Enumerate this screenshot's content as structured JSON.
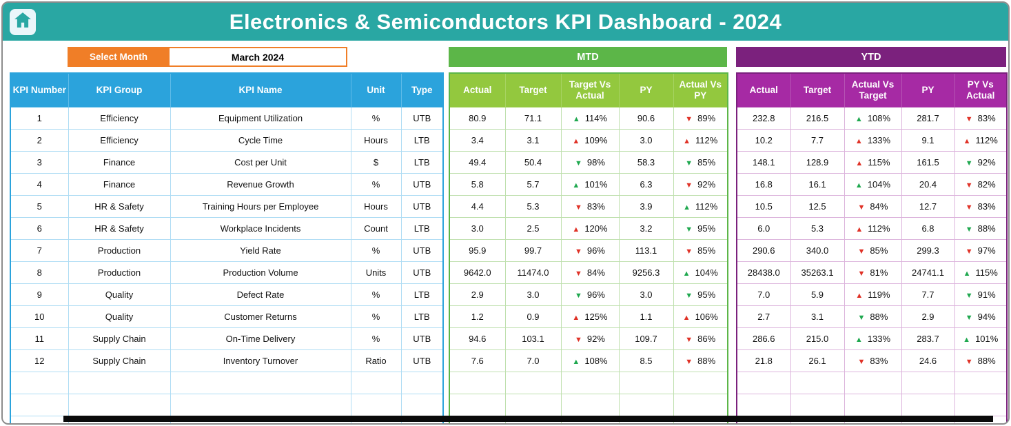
{
  "header": {
    "title": "Electronics & Semiconductors KPI Dashboard - 2024"
  },
  "month_selector": {
    "label": "Select Month",
    "value": "March 2024"
  },
  "kpi_table": {
    "headers": [
      "KPI Number",
      "KPI Group",
      "KPI Name",
      "Unit",
      "Type"
    ]
  },
  "mtd_section": {
    "label": "MTD",
    "headers": [
      "Actual",
      "Target",
      "Target Vs Actual",
      "PY",
      "Actual Vs PY"
    ]
  },
  "ytd_section": {
    "label": "YTD",
    "headers": [
      "Actual",
      "Target",
      "Actual Vs Target",
      "PY",
      "PY Vs Actual"
    ]
  },
  "colors": {
    "titlebar_teal": "#29A7A3",
    "selector_orange": "#F07E27",
    "kpi_header_blue": "#2BA3DC",
    "mtd_band_green": "#5CB648",
    "mtd_header_green": "#93C83E",
    "ytd_band_purple": "#7B217D",
    "ytd_header_magenta": "#A62AA4",
    "arrow_good_green": "#1FA84F",
    "arrow_bad_red": "#E03227"
  },
  "rows": [
    {
      "kpi": [
        "1",
        "Efficiency",
        "Equipment Utilization",
        "%",
        "UTB"
      ],
      "mtd": [
        "80.9",
        "71.1",
        {
          "dir": "up",
          "color": "green",
          "value": "114%"
        },
        "90.6",
        {
          "dir": "down",
          "color": "red",
          "value": "89%"
        }
      ],
      "ytd": [
        "232.8",
        "216.5",
        {
          "dir": "up",
          "color": "green",
          "value": "108%"
        },
        "281.7",
        {
          "dir": "down",
          "color": "red",
          "value": "83%"
        }
      ]
    },
    {
      "kpi": [
        "2",
        "Efficiency",
        "Cycle Time",
        "Hours",
        "LTB"
      ],
      "mtd": [
        "3.4",
        "3.1",
        {
          "dir": "up",
          "color": "red",
          "value": "109%"
        },
        "3.0",
        {
          "dir": "up",
          "color": "red",
          "value": "112%"
        }
      ],
      "ytd": [
        "10.2",
        "7.7",
        {
          "dir": "up",
          "color": "red",
          "value": "133%"
        },
        "9.1",
        {
          "dir": "up",
          "color": "red",
          "value": "112%"
        }
      ]
    },
    {
      "kpi": [
        "3",
        "Finance",
        "Cost per Unit",
        "$",
        "LTB"
      ],
      "mtd": [
        "49.4",
        "50.4",
        {
          "dir": "down",
          "color": "green",
          "value": "98%"
        },
        "58.3",
        {
          "dir": "down",
          "color": "green",
          "value": "85%"
        }
      ],
      "ytd": [
        "148.1",
        "128.9",
        {
          "dir": "up",
          "color": "red",
          "value": "115%"
        },
        "161.5",
        {
          "dir": "down",
          "color": "green",
          "value": "92%"
        }
      ]
    },
    {
      "kpi": [
        "4",
        "Finance",
        "Revenue Growth",
        "%",
        "UTB"
      ],
      "mtd": [
        "5.8",
        "5.7",
        {
          "dir": "up",
          "color": "green",
          "value": "101%"
        },
        "6.3",
        {
          "dir": "down",
          "color": "red",
          "value": "92%"
        }
      ],
      "ytd": [
        "16.8",
        "16.1",
        {
          "dir": "up",
          "color": "green",
          "value": "104%"
        },
        "20.4",
        {
          "dir": "down",
          "color": "red",
          "value": "82%"
        }
      ]
    },
    {
      "kpi": [
        "5",
        "HR & Safety",
        "Training Hours per Employee",
        "Hours",
        "UTB"
      ],
      "mtd": [
        "4.4",
        "5.3",
        {
          "dir": "down",
          "color": "red",
          "value": "83%"
        },
        "3.9",
        {
          "dir": "up",
          "color": "green",
          "value": "112%"
        }
      ],
      "ytd": [
        "10.5",
        "12.5",
        {
          "dir": "down",
          "color": "red",
          "value": "84%"
        },
        "12.7",
        {
          "dir": "down",
          "color": "red",
          "value": "83%"
        }
      ]
    },
    {
      "kpi": [
        "6",
        "HR & Safety",
        "Workplace Incidents",
        "Count",
        "LTB"
      ],
      "mtd": [
        "3.0",
        "2.5",
        {
          "dir": "up",
          "color": "red",
          "value": "120%"
        },
        "3.2",
        {
          "dir": "down",
          "color": "green",
          "value": "95%"
        }
      ],
      "ytd": [
        "6.0",
        "5.3",
        {
          "dir": "up",
          "color": "red",
          "value": "112%"
        },
        "6.8",
        {
          "dir": "down",
          "color": "green",
          "value": "88%"
        }
      ]
    },
    {
      "kpi": [
        "7",
        "Production",
        "Yield Rate",
        "%",
        "UTB"
      ],
      "mtd": [
        "95.9",
        "99.7",
        {
          "dir": "down",
          "color": "red",
          "value": "96%"
        },
        "113.1",
        {
          "dir": "down",
          "color": "red",
          "value": "85%"
        }
      ],
      "ytd": [
        "290.6",
        "340.0",
        {
          "dir": "down",
          "color": "red",
          "value": "85%"
        },
        "299.3",
        {
          "dir": "down",
          "color": "red",
          "value": "97%"
        }
      ]
    },
    {
      "kpi": [
        "8",
        "Production",
        "Production Volume",
        "Units",
        "UTB"
      ],
      "mtd": [
        "9642.0",
        "11474.0",
        {
          "dir": "down",
          "color": "red",
          "value": "84%"
        },
        "9256.3",
        {
          "dir": "up",
          "color": "green",
          "value": "104%"
        }
      ],
      "ytd": [
        "28438.0",
        "35263.1",
        {
          "dir": "down",
          "color": "red",
          "value": "81%"
        },
        "24741.1",
        {
          "dir": "up",
          "color": "green",
          "value": "115%"
        }
      ]
    },
    {
      "kpi": [
        "9",
        "Quality",
        "Defect Rate",
        "%",
        "LTB"
      ],
      "mtd": [
        "2.9",
        "3.0",
        {
          "dir": "down",
          "color": "green",
          "value": "96%"
        },
        "3.0",
        {
          "dir": "down",
          "color": "green",
          "value": "95%"
        }
      ],
      "ytd": [
        "7.0",
        "5.9",
        {
          "dir": "up",
          "color": "red",
          "value": "119%"
        },
        "7.7",
        {
          "dir": "down",
          "color": "green",
          "value": "91%"
        }
      ]
    },
    {
      "kpi": [
        "10",
        "Quality",
        "Customer Returns",
        "%",
        "LTB"
      ],
      "mtd": [
        "1.2",
        "0.9",
        {
          "dir": "up",
          "color": "red",
          "value": "125%"
        },
        "1.1",
        {
          "dir": "up",
          "color": "red",
          "value": "106%"
        }
      ],
      "ytd": [
        "2.7",
        "3.1",
        {
          "dir": "down",
          "color": "green",
          "value": "88%"
        },
        "2.9",
        {
          "dir": "down",
          "color": "green",
          "value": "94%"
        }
      ]
    },
    {
      "kpi": [
        "11",
        "Supply Chain",
        "On-Time Delivery",
        "%",
        "UTB"
      ],
      "mtd": [
        "94.6",
        "103.1",
        {
          "dir": "down",
          "color": "red",
          "value": "92%"
        },
        "109.7",
        {
          "dir": "down",
          "color": "red",
          "value": "86%"
        }
      ],
      "ytd": [
        "286.6",
        "215.0",
        {
          "dir": "up",
          "color": "green",
          "value": "133%"
        },
        "283.7",
        {
          "dir": "up",
          "color": "green",
          "value": "101%"
        }
      ]
    },
    {
      "kpi": [
        "12",
        "Supply Chain",
        "Inventory Turnover",
        "Ratio",
        "UTB"
      ],
      "mtd": [
        "7.6",
        "7.0",
        {
          "dir": "up",
          "color": "green",
          "value": "108%"
        },
        "8.5",
        {
          "dir": "down",
          "color": "red",
          "value": "88%"
        }
      ],
      "ytd": [
        "21.8",
        "26.1",
        {
          "dir": "down",
          "color": "red",
          "value": "83%"
        },
        "24.6",
        {
          "dir": "down",
          "color": "red",
          "value": "88%"
        }
      ]
    }
  ],
  "empty_rows": 3
}
